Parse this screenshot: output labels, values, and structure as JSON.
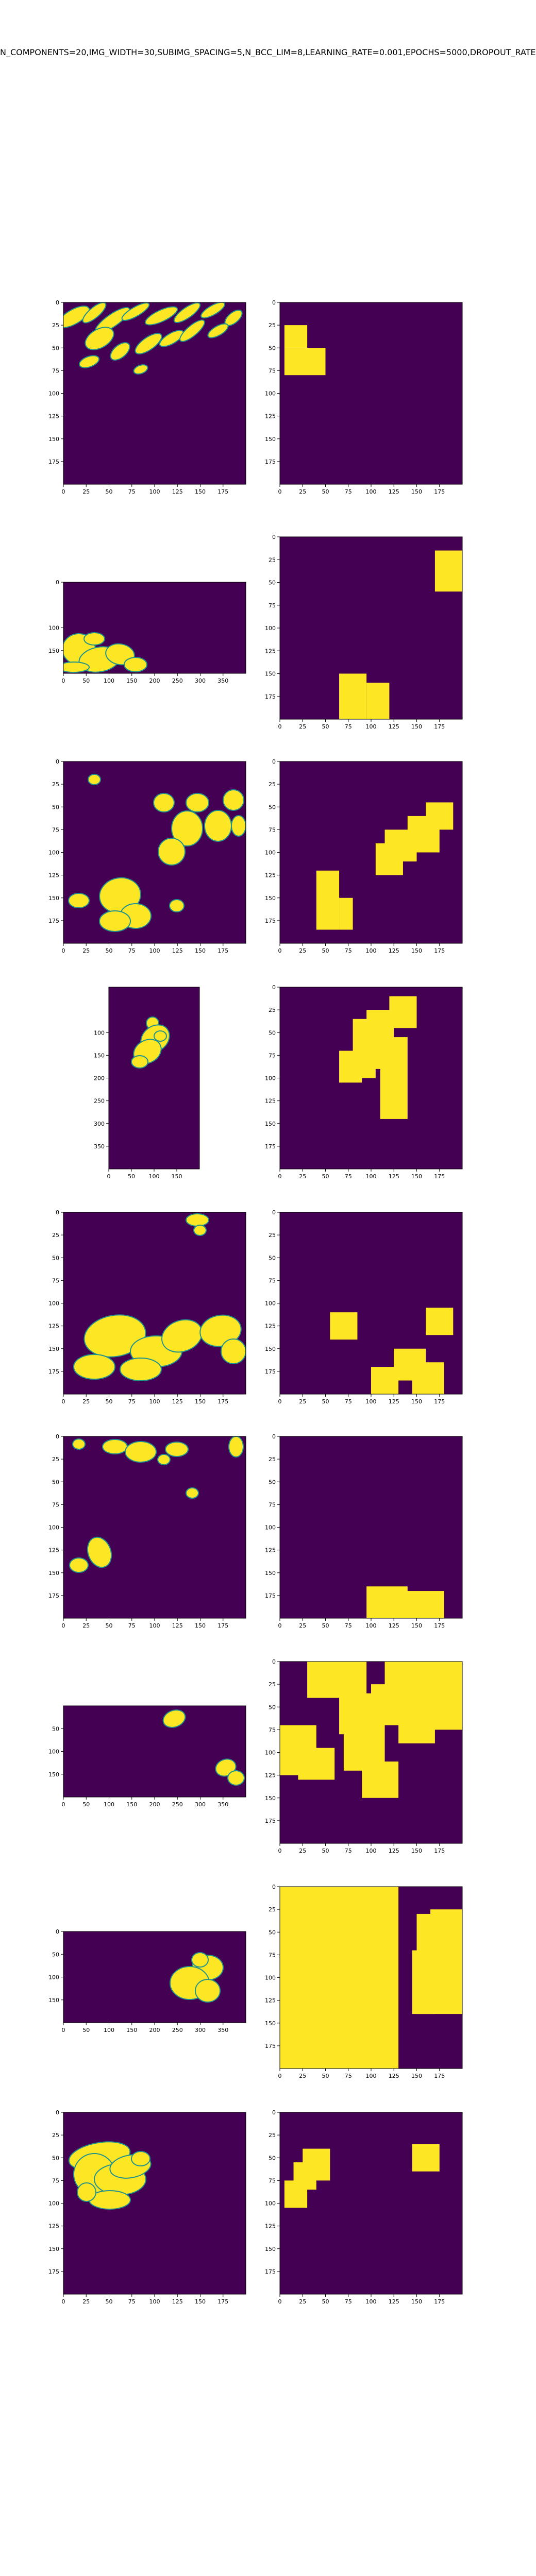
{
  "figure": {
    "title": "N_COMPONENTS=20,IMG_WIDTH=30,SUBIMG_SPACING=5,N_BCC_LIM=8,LEARNING_RATE=0.001,EPOCHS=5000,DROPOUT_RATE"
  },
  "colors": {
    "background": "#440154",
    "foreground": "#fde725",
    "edge": "#21918c",
    "text": "#000000"
  },
  "chart_data": [
    {
      "type": "heatmap",
      "row": 1,
      "side": "left",
      "x_ticks": [
        0,
        25,
        50,
        75,
        100,
        125,
        150,
        175
      ],
      "y_ticks": [
        0,
        25,
        50,
        75,
        100,
        125,
        150,
        175
      ],
      "xlim": [
        0,
        200
      ],
      "ylim": [
        200,
        0
      ]
    },
    {
      "type": "heatmap",
      "row": 1,
      "side": "right",
      "x_ticks": [
        0,
        25,
        50,
        75,
        100,
        125,
        150,
        175
      ],
      "y_ticks": [
        0,
        25,
        50,
        75,
        100,
        125,
        150,
        175
      ],
      "xlim": [
        0,
        200
      ],
      "ylim": [
        200,
        0
      ],
      "regions": [
        [
          5,
          25,
          30,
          50
        ],
        [
          5,
          50,
          50,
          80
        ]
      ]
    },
    {
      "type": "heatmap",
      "row": 2,
      "side": "left",
      "x_ticks": [
        0,
        50,
        100,
        150,
        200,
        250,
        300,
        350
      ],
      "y_ticks": [
        0,
        100,
        150
      ],
      "xlim": [
        0,
        400
      ],
      "ylim": [
        200,
        0
      ]
    },
    {
      "type": "heatmap",
      "row": 2,
      "side": "right",
      "x_ticks": [
        0,
        25,
        50,
        75,
        100,
        125,
        150,
        175
      ],
      "y_ticks": [
        0,
        25,
        50,
        75,
        100,
        125,
        150,
        175
      ],
      "xlim": [
        0,
        200
      ],
      "ylim": [
        200,
        0
      ],
      "regions": [
        [
          170,
          15,
          200,
          60
        ],
        [
          65,
          150,
          95,
          200
        ],
        [
          95,
          160,
          120,
          200
        ]
      ]
    },
    {
      "type": "heatmap",
      "row": 3,
      "side": "left",
      "x_ticks": [
        0,
        25,
        50,
        75,
        100,
        125,
        150,
        175
      ],
      "y_ticks": [
        0,
        25,
        50,
        75,
        100,
        125,
        150,
        175
      ],
      "xlim": [
        0,
        200
      ],
      "ylim": [
        200,
        0
      ]
    },
    {
      "type": "heatmap",
      "row": 3,
      "side": "right",
      "x_ticks": [
        0,
        25,
        50,
        75,
        100,
        125,
        150,
        175
      ],
      "y_ticks": [
        0,
        25,
        50,
        75,
        100,
        125,
        150,
        175
      ],
      "xlim": [
        0,
        200
      ],
      "ylim": [
        200,
        0
      ],
      "regions": [
        [
          40,
          120,
          65,
          185
        ],
        [
          65,
          150,
          80,
          185
        ],
        [
          105,
          90,
          135,
          125
        ],
        [
          115,
          75,
          150,
          110
        ],
        [
          140,
          60,
          175,
          100
        ],
        [
          160,
          45,
          190,
          75
        ]
      ]
    },
    {
      "type": "heatmap",
      "row": 4,
      "side": "left",
      "x_ticks": [
        0,
        50,
        100,
        150
      ],
      "y_ticks": [
        100,
        150,
        200,
        250,
        300,
        350
      ],
      "xlim": [
        0,
        200
      ],
      "ylim": [
        400,
        0
      ]
    },
    {
      "type": "heatmap",
      "row": 4,
      "side": "right",
      "x_ticks": [
        0,
        25,
        50,
        75,
        100,
        125,
        150,
        175
      ],
      "y_ticks": [
        0,
        25,
        50,
        75,
        100,
        125,
        150,
        175
      ],
      "xlim": [
        0,
        200
      ],
      "ylim": [
        200,
        0
      ],
      "regions": [
        [
          65,
          70,
          90,
          105
        ],
        [
          80,
          35,
          105,
          100
        ],
        [
          95,
          25,
          125,
          90
        ],
        [
          110,
          55,
          140,
          145
        ],
        [
          120,
          10,
          150,
          45
        ]
      ]
    },
    {
      "type": "heatmap",
      "row": 5,
      "side": "left",
      "x_ticks": [
        0,
        25,
        50,
        75,
        100,
        125,
        150,
        175
      ],
      "y_ticks": [
        0,
        25,
        50,
        75,
        100,
        125,
        150,
        175
      ],
      "xlim": [
        0,
        200
      ],
      "ylim": [
        200,
        0
      ]
    },
    {
      "type": "heatmap",
      "row": 5,
      "side": "right",
      "x_ticks": [
        0,
        25,
        50,
        75,
        100,
        125,
        150,
        175
      ],
      "y_ticks": [
        0,
        25,
        50,
        75,
        100,
        125,
        150,
        175
      ],
      "xlim": [
        0,
        200
      ],
      "ylim": [
        200,
        0
      ],
      "regions": [
        [
          55,
          110,
          85,
          140
        ],
        [
          160,
          105,
          190,
          135
        ],
        [
          100,
          170,
          130,
          200
        ],
        [
          125,
          150,
          160,
          185
        ],
        [
          145,
          165,
          180,
          200
        ]
      ]
    },
    {
      "type": "heatmap",
      "row": 6,
      "side": "left",
      "x_ticks": [
        0,
        25,
        50,
        75,
        100,
        125,
        150,
        175
      ],
      "y_ticks": [
        0,
        25,
        50,
        75,
        100,
        125,
        150,
        175
      ],
      "xlim": [
        0,
        200
      ],
      "ylim": [
        200,
        0
      ]
    },
    {
      "type": "heatmap",
      "row": 6,
      "side": "right",
      "x_ticks": [
        0,
        25,
        50,
        75,
        100,
        125,
        150,
        175
      ],
      "y_ticks": [
        0,
        25,
        50,
        75,
        100,
        125,
        150,
        175
      ],
      "xlim": [
        0,
        200
      ],
      "ylim": [
        200,
        0
      ],
      "regions": [
        [
          95,
          165,
          140,
          200
        ],
        [
          135,
          170,
          180,
          200
        ]
      ]
    },
    {
      "type": "heatmap",
      "row": 7,
      "side": "left",
      "x_ticks": [
        0,
        50,
        100,
        150,
        200,
        250,
        300,
        350
      ],
      "y_ticks": [
        50,
        100,
        150
      ],
      "xlim": [
        0,
        400
      ],
      "ylim": [
        200,
        0
      ]
    },
    {
      "type": "heatmap",
      "row": 7,
      "side": "right",
      "x_ticks": [
        0,
        25,
        50,
        75,
        100,
        125,
        150,
        175
      ],
      "y_ticks": [
        0,
        25,
        50,
        75,
        100,
        125,
        150,
        175
      ],
      "xlim": [
        0,
        200
      ],
      "ylim": [
        200,
        0
      ],
      "regions": [
        [
          30,
          0,
          95,
          40
        ],
        [
          0,
          70,
          40,
          125
        ],
        [
          20,
          95,
          60,
          130
        ],
        [
          65,
          35,
          100,
          80
        ],
        [
          70,
          65,
          115,
          120
        ],
        [
          90,
          110,
          130,
          150
        ],
        [
          100,
          25,
          140,
          70
        ],
        [
          115,
          0,
          160,
          50
        ],
        [
          130,
          40,
          170,
          90
        ],
        [
          150,
          0,
          200,
          40
        ],
        [
          160,
          30,
          200,
          75
        ]
      ]
    },
    {
      "type": "heatmap",
      "row": 8,
      "side": "left",
      "x_ticks": [
        0,
        50,
        100,
        150,
        200,
        250,
        300,
        350
      ],
      "y_ticks": [
        0,
        50,
        100,
        150
      ],
      "xlim": [
        0,
        400
      ],
      "ylim": [
        200,
        0
      ]
    },
    {
      "type": "heatmap",
      "row": 8,
      "side": "right",
      "x_ticks": [
        0,
        25,
        50,
        75,
        100,
        125,
        150,
        175
      ],
      "y_ticks": [
        0,
        25,
        50,
        75,
        100,
        125,
        150,
        175
      ],
      "xlim": [
        0,
        200
      ],
      "ylim": [
        200,
        0
      ],
      "regions": [
        [
          0,
          0,
          130,
          200
        ],
        [
          145,
          70,
          170,
          140
        ],
        [
          150,
          30,
          200,
          140
        ],
        [
          165,
          25,
          200,
          70
        ]
      ]
    },
    {
      "type": "heatmap",
      "row": 9,
      "side": "left",
      "x_ticks": [
        0,
        25,
        50,
        75,
        100,
        125,
        150,
        175
      ],
      "y_ticks": [
        0,
        25,
        50,
        75,
        100,
        125,
        150,
        175
      ],
      "xlim": [
        0,
        200
      ],
      "ylim": [
        200,
        0
      ]
    },
    {
      "type": "heatmap",
      "row": 9,
      "side": "right",
      "x_ticks": [
        0,
        25,
        50,
        75,
        100,
        125,
        150,
        175
      ],
      "y_ticks": [
        0,
        25,
        50,
        75,
        100,
        125,
        150,
        175
      ],
      "xlim": [
        0,
        200
      ],
      "ylim": [
        200,
        0
      ],
      "regions": [
        [
          5,
          75,
          30,
          105
        ],
        [
          15,
          55,
          40,
          85
        ],
        [
          25,
          40,
          55,
          75
        ],
        [
          145,
          35,
          175,
          65
        ]
      ]
    }
  ]
}
